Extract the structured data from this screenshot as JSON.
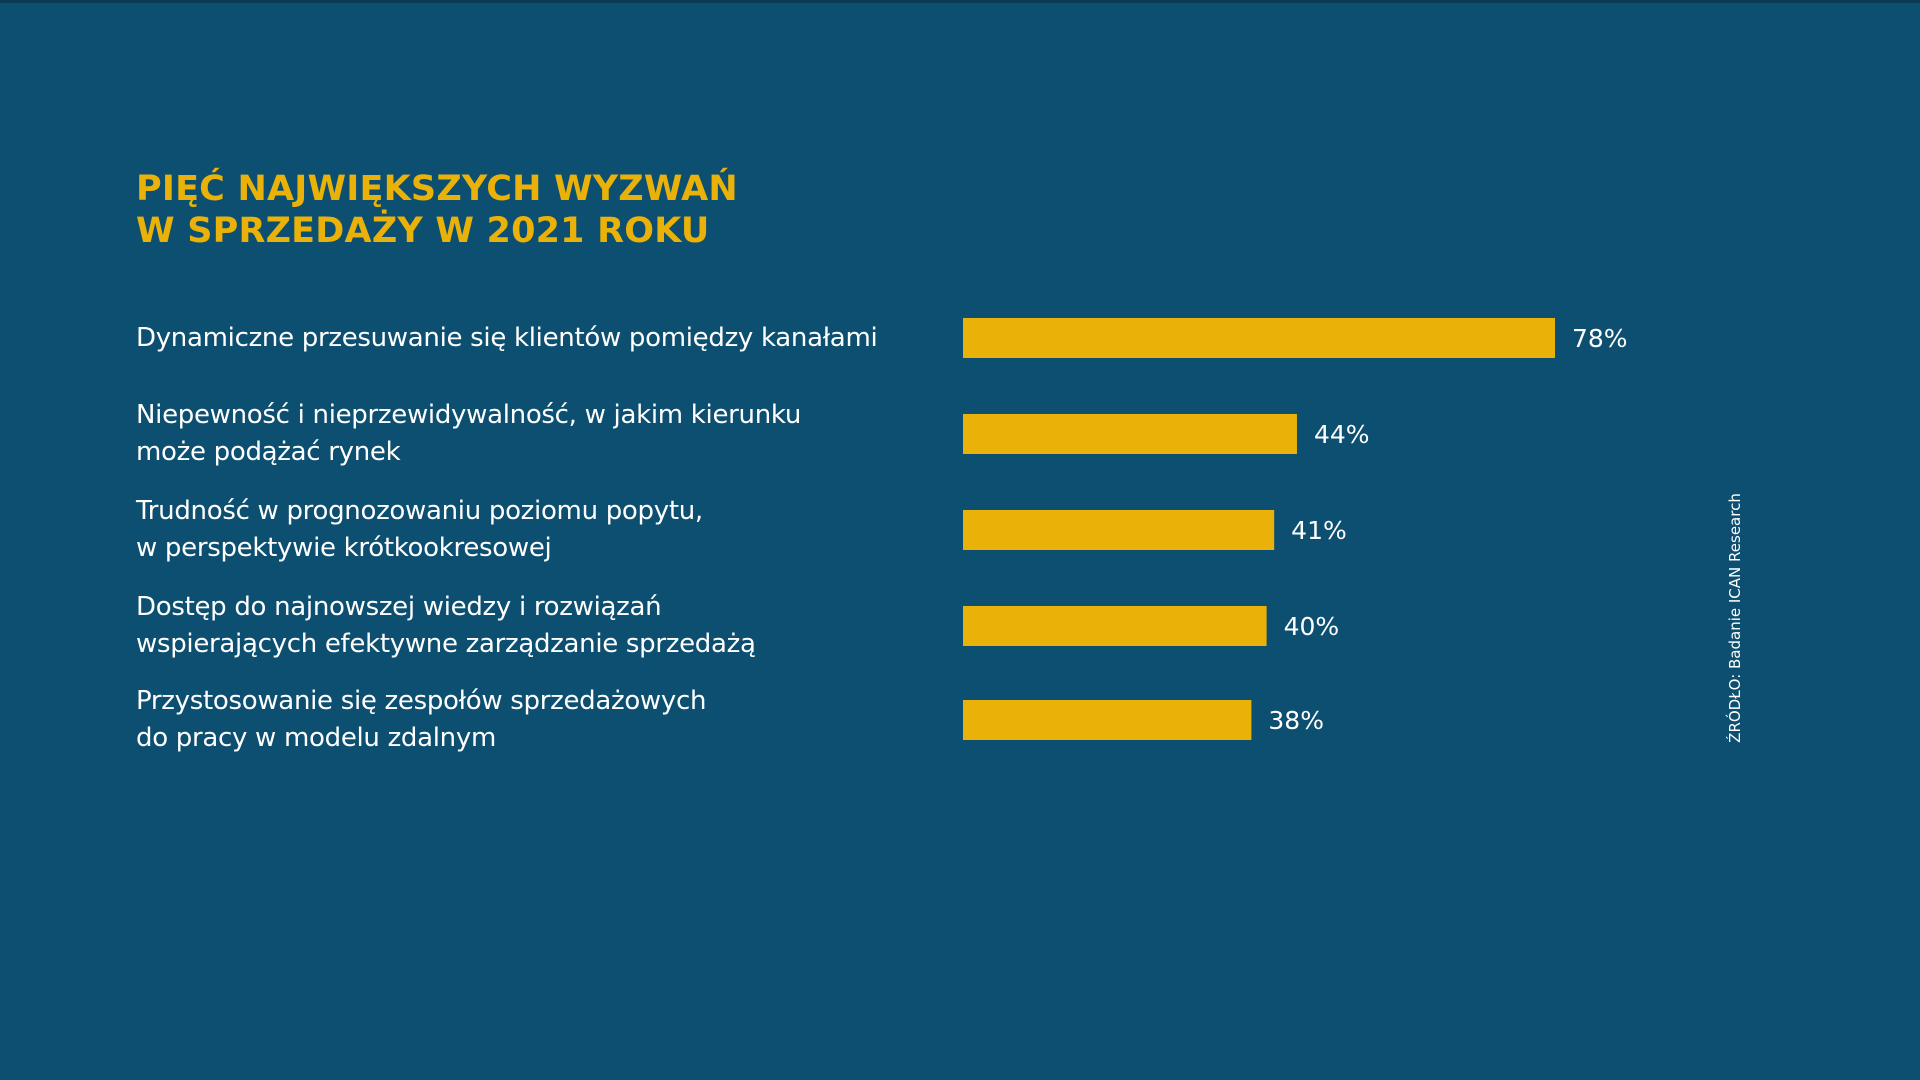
{
  "colors": {
    "background": "#0c4f70",
    "accent": "#eab208",
    "text": "#ffffff"
  },
  "source": "ŹRÓDŁO: Badanie ICAN Research",
  "chart_data": {
    "type": "bar",
    "orientation": "horizontal",
    "title_lines": [
      "PIĘĆ NAJWIĘKSZYCH WYZWAŃ",
      "W SPRZEDAŻY W 2021 ROKU"
    ],
    "categories": [
      [
        "Dynamiczne przesuwanie się klientów pomiędzy kanałami"
      ],
      [
        "Niepewność i nieprzewidywalność, w jakim kierunku",
        "może podążać rynek"
      ],
      [
        "Trudność w prognozowaniu poziomu popytu,",
        "w perspektywie krótkookresowej"
      ],
      [
        "Dostęp do najnowszej wiedzy i rozwiązań",
        "wspierających efektywne zarządzanie sprzedażą"
      ],
      [
        "Przystosowanie się zespołów sprzedażowych",
        "do pracy w modelu zdalnym"
      ]
    ],
    "values": [
      78,
      44,
      41,
      40,
      38
    ],
    "value_labels": [
      "78%",
      "44%",
      "41%",
      "40%",
      "38%"
    ],
    "unit": "%",
    "xlim": [
      0,
      78
    ],
    "grid": false,
    "axes_visible": false
  }
}
